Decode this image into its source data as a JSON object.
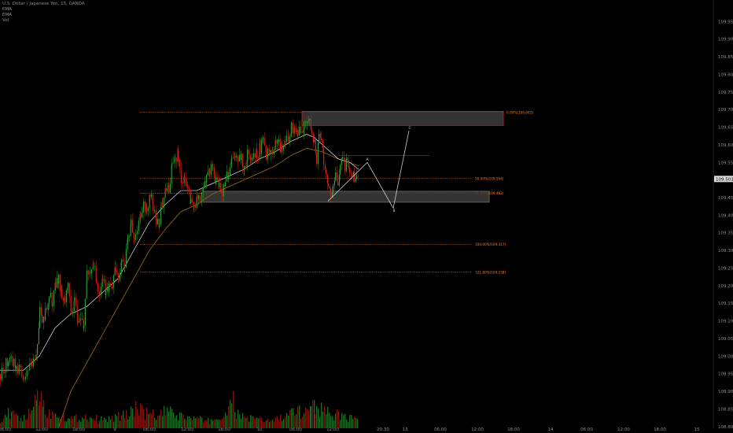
{
  "legend": {
    "symbol": "U.S. Dollar / Japanese Yen, 15, OANDA",
    "indicators": [
      "EMA",
      "EMA",
      "Vol"
    ]
  },
  "colors": {
    "background": "#000000",
    "up_candle": "#2f9a3c",
    "down_candle": "#c8201c",
    "ema_fast": "#dfe7ef",
    "ema_slow": "#8a6317",
    "fib": "#ff7a1a",
    "zone_border": "#d62020",
    "zone_fill": "#3c3c3c",
    "axis_text": "#8e8e8e"
  },
  "chart_data": {
    "type": "candlestick",
    "title": "U.S. Dollar / Japanese Yen, 15, OANDA",
    "ylim": [
      108.795,
      110.0
    ],
    "y_ticks": [
      "108.800",
      "108.850",
      "108.900",
      "108.950",
      "109.000",
      "109.050",
      "109.100",
      "109.150",
      "109.200",
      "109.250",
      "109.300",
      "109.350",
      "109.400",
      "109.450",
      "109.500",
      "109.550",
      "109.600",
      "109.650",
      "109.700",
      "109.750",
      "109.800",
      "109.850",
      "109.900",
      "109.950"
    ],
    "x_ticks": [
      "06:00",
      "12:00",
      "18:00",
      "9",
      "06:00",
      "12:00",
      "18:00",
      "10",
      "06:00",
      "12:00",
      "20:30",
      "13",
      "06:00",
      "12:00",
      "18:00",
      "14",
      "06:00",
      "12:00",
      "18:00",
      "15"
    ],
    "current_price": "109.503",
    "price_path": [
      [
        0,
        108.95
      ],
      [
        10,
        108.99
      ],
      [
        20,
        108.97
      ],
      [
        30,
        108.94
      ],
      [
        40,
        108.98
      ],
      [
        47,
        109.02
      ],
      [
        50,
        109.14
      ],
      [
        53,
        109.1
      ],
      [
        57,
        109.12
      ],
      [
        62,
        109.18
      ],
      [
        66,
        109.15
      ],
      [
        70,
        109.21
      ],
      [
        74,
        109.22
      ],
      [
        78,
        109.17
      ],
      [
        82,
        109.15
      ],
      [
        86,
        109.2
      ],
      [
        90,
        109.13
      ],
      [
        94,
        109.16
      ],
      [
        98,
        109.1
      ],
      [
        102,
        109.12
      ],
      [
        106,
        109.08
      ],
      [
        110,
        109.24
      ],
      [
        114,
        109.22
      ],
      [
        118,
        109.27
      ],
      [
        122,
        109.21
      ],
      [
        126,
        109.18
      ],
      [
        130,
        109.23
      ],
      [
        134,
        109.17
      ],
      [
        138,
        109.2
      ],
      [
        142,
        109.19
      ],
      [
        146,
        109.24
      ],
      [
        150,
        109.22
      ],
      [
        154,
        109.28
      ],
      [
        158,
        109.26
      ],
      [
        162,
        109.33
      ],
      [
        166,
        109.37
      ],
      [
        170,
        109.32
      ],
      [
        174,
        109.36
      ],
      [
        178,
        109.4
      ],
      [
        182,
        109.44
      ],
      [
        186,
        109.41
      ],
      [
        190,
        109.46
      ],
      [
        194,
        109.43
      ],
      [
        198,
        109.39
      ],
      [
        202,
        109.38
      ],
      [
        206,
        109.44
      ],
      [
        210,
        109.47
      ],
      [
        214,
        109.48
      ],
      [
        218,
        109.53
      ],
      [
        222,
        109.56
      ],
      [
        226,
        109.57
      ],
      [
        230,
        109.5
      ],
      [
        234,
        109.51
      ],
      [
        238,
        109.47
      ],
      [
        242,
        109.43
      ],
      [
        246,
        109.42
      ],
      [
        250,
        109.46
      ],
      [
        254,
        109.45
      ],
      [
        258,
        109.49
      ],
      [
        262,
        109.5
      ],
      [
        266,
        109.53
      ],
      [
        270,
        109.54
      ],
      [
        274,
        109.5
      ],
      [
        278,
        109.49
      ],
      [
        282,
        109.47
      ],
      [
        286,
        109.5
      ],
      [
        290,
        109.52
      ],
      [
        294,
        109.56
      ],
      [
        298,
        109.58
      ],
      [
        302,
        109.55
      ],
      [
        306,
        109.56
      ],
      [
        310,
        109.54
      ],
      [
        314,
        109.57
      ],
      [
        318,
        109.55
      ],
      [
        322,
        109.58
      ],
      [
        326,
        109.57
      ],
      [
        330,
        109.59
      ],
      [
        334,
        109.61
      ],
      [
        338,
        109.57
      ],
      [
        342,
        109.59
      ],
      [
        346,
        109.58
      ],
      [
        350,
        109.6
      ],
      [
        354,
        109.6
      ],
      [
        358,
        109.59
      ],
      [
        362,
        109.6
      ],
      [
        366,
        109.62
      ],
      [
        370,
        109.65
      ],
      [
        374,
        109.63
      ],
      [
        378,
        109.64
      ],
      [
        382,
        109.65
      ],
      [
        386,
        109.65
      ],
      [
        390,
        109.66
      ],
      [
        393,
        109.69
      ],
      [
        396,
        109.62
      ],
      [
        399,
        109.6
      ],
      [
        402,
        109.56
      ],
      [
        405,
        109.63
      ],
      [
        408,
        109.6
      ],
      [
        411,
        109.56
      ],
      [
        414,
        109.53
      ],
      [
        417,
        109.49
      ],
      [
        420,
        109.46
      ],
      [
        423,
        109.48
      ],
      [
        426,
        109.51
      ],
      [
        429,
        109.5
      ],
      [
        432,
        109.53
      ],
      [
        435,
        109.56
      ],
      [
        438,
        109.54
      ],
      [
        441,
        109.55
      ],
      [
        444,
        109.53
      ],
      [
        447,
        109.52
      ],
      [
        450,
        109.51
      ],
      [
        453,
        109.5
      ],
      [
        456,
        109.5
      ]
    ],
    "ema_fast": [
      [
        0,
        108.96
      ],
      [
        30,
        108.96
      ],
      [
        50,
        109.0
      ],
      [
        70,
        109.08
      ],
      [
        90,
        109.12
      ],
      [
        110,
        109.14
      ],
      [
        130,
        109.18
      ],
      [
        150,
        109.22
      ],
      [
        170,
        109.3
      ],
      [
        190,
        109.38
      ],
      [
        210,
        109.43
      ],
      [
        230,
        109.47
      ],
      [
        250,
        109.47
      ],
      [
        270,
        109.49
      ],
      [
        290,
        109.51
      ],
      [
        310,
        109.53
      ],
      [
        330,
        109.56
      ],
      [
        350,
        109.58
      ],
      [
        370,
        109.61
      ],
      [
        390,
        109.63
      ],
      [
        400,
        109.62
      ],
      [
        415,
        109.59
      ],
      [
        430,
        109.56
      ],
      [
        445,
        109.55
      ],
      [
        456,
        109.53
      ]
    ],
    "ema_slow": [
      [
        75,
        108.8
      ],
      [
        90,
        108.9
      ],
      [
        110,
        108.98
      ],
      [
        130,
        109.06
      ],
      [
        150,
        109.14
      ],
      [
        170,
        109.22
      ],
      [
        190,
        109.3
      ],
      [
        210,
        109.36
      ],
      [
        230,
        109.41
      ],
      [
        250,
        109.43
      ],
      [
        270,
        109.46
      ],
      [
        290,
        109.48
      ],
      [
        310,
        109.5
      ],
      [
        330,
        109.52
      ],
      [
        350,
        109.54
      ],
      [
        370,
        109.57
      ],
      [
        390,
        109.59
      ],
      [
        410,
        109.58
      ],
      [
        430,
        109.56
      ],
      [
        456,
        109.54
      ]
    ],
    "volume": [
      [
        0,
        0.2
      ],
      [
        10,
        0.3
      ],
      [
        20,
        0.25
      ],
      [
        30,
        0.2
      ],
      [
        40,
        0.35
      ],
      [
        47,
        0.8
      ],
      [
        50,
        0.7
      ],
      [
        55,
        0.45
      ],
      [
        60,
        0.3
      ],
      [
        70,
        0.35
      ],
      [
        80,
        0.25
      ],
      [
        90,
        0.2
      ],
      [
        100,
        0.22
      ],
      [
        110,
        0.25
      ],
      [
        120,
        0.2
      ],
      [
        130,
        0.18
      ],
      [
        140,
        0.2
      ],
      [
        150,
        0.25
      ],
      [
        160,
        0.28
      ],
      [
        170,
        0.45
      ],
      [
        180,
        0.35
      ],
      [
        190,
        0.3
      ],
      [
        200,
        0.25
      ],
      [
        210,
        0.35
      ],
      [
        220,
        0.3
      ],
      [
        230,
        0.25
      ],
      [
        240,
        0.22
      ],
      [
        250,
        0.2
      ],
      [
        260,
        0.15
      ],
      [
        270,
        0.18
      ],
      [
        280,
        0.2
      ],
      [
        290,
        0.4
      ],
      [
        296,
        0.55
      ],
      [
        300,
        0.3
      ],
      [
        310,
        0.25
      ],
      [
        320,
        0.2
      ],
      [
        330,
        0.18
      ],
      [
        340,
        0.15
      ],
      [
        350,
        0.2
      ],
      [
        360,
        0.22
      ],
      [
        370,
        0.3
      ],
      [
        380,
        0.35
      ],
      [
        390,
        0.4
      ],
      [
        395,
        0.65
      ],
      [
        400,
        0.45
      ],
      [
        410,
        0.4
      ],
      [
        420,
        0.3
      ],
      [
        430,
        0.28
      ],
      [
        440,
        0.25
      ],
      [
        450,
        0.2
      ],
      [
        456,
        0.15
      ]
    ],
    "fib_levels": [
      {
        "label": "0.00%(109.692)",
        "value": 109.692,
        "x_start": 178,
        "x_end": 640
      },
      {
        "label": "50.00%(109.504)",
        "value": 109.504,
        "x_start": 178,
        "x_end": 600
      },
      {
        "label": "61.80%(109.462)",
        "value": 109.462,
        "x_start": 178,
        "x_end": 600
      },
      {
        "label": "100.00%(109.317)",
        "value": 109.317,
        "x_start": 178,
        "x_end": 600
      },
      {
        "label": "121.80%(109.238)",
        "value": 109.238,
        "x_start": 178,
        "x_end": 600
      }
    ],
    "zones": [
      {
        "name": "resistance",
        "y_top": 109.695,
        "y_bottom": 109.655,
        "x_start": 384,
        "x_end": 640
      },
      {
        "name": "support",
        "y_top": 109.468,
        "y_bottom": 109.437,
        "x_start": 258,
        "x_end": 622
      }
    ],
    "short_level": {
      "value": 109.57,
      "x_start": 430,
      "x_end": 546
    },
    "waves": [
      {
        "label": "A",
        "points": [
          [
            417,
            109.44
          ],
          [
            467,
            109.55
          ]
        ]
      },
      {
        "label": "B",
        "points": [
          [
            467,
            109.55
          ],
          [
            500,
            109.42
          ]
        ]
      },
      {
        "label": "C",
        "points": [
          [
            500,
            109.42
          ],
          [
            520,
            109.64
          ]
        ]
      }
    ],
    "wave_labels": [
      {
        "label": "A",
        "x": 467,
        "y": 109.555
      },
      {
        "label": "B",
        "x": 501,
        "y": 109.41
      },
      {
        "label": "C",
        "x": 521,
        "y": 109.645
      }
    ]
  }
}
